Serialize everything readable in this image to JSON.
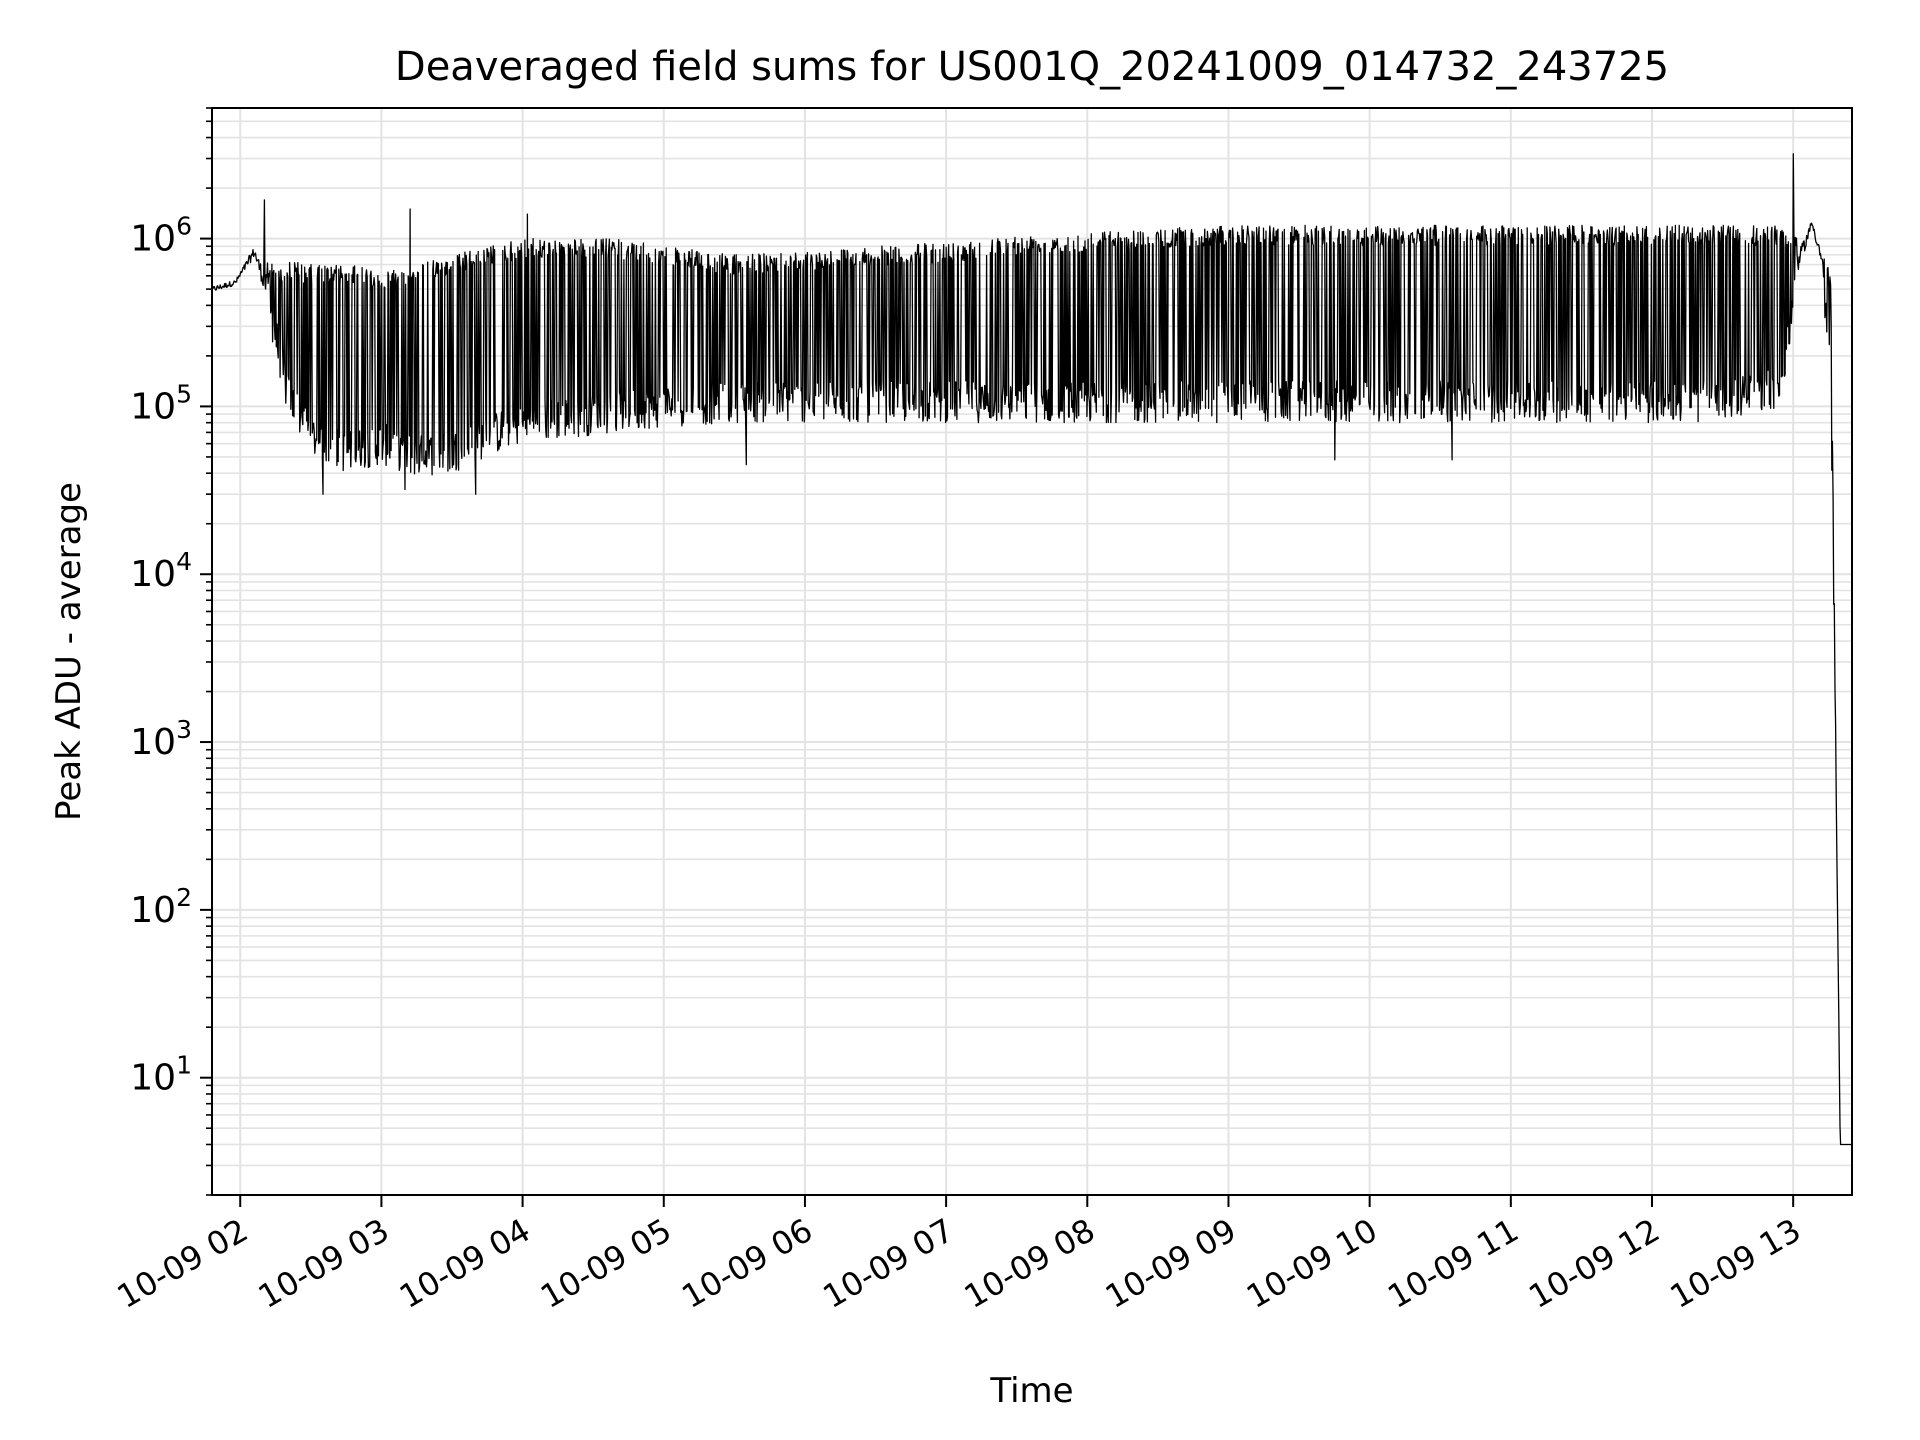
{
  "chart_data": {
    "type": "line",
    "title": "Deaveraged field sums for US001Q_20241009_014732_243725",
    "xlabel": "Time",
    "ylabel": "Peak ADU - average",
    "yscale": "log",
    "ylim": [
      2,
      6000000
    ],
    "xlim": [
      "10-09 01:48",
      "10-09 13:25"
    ],
    "grid": true,
    "line_color": "#000000",
    "x_ticks": [
      "10-09 02",
      "10-09 03",
      "10-09 04",
      "10-09 05",
      "10-09 06",
      "10-09 07",
      "10-09 08",
      "10-09 09",
      "10-09 10",
      "10-09 11",
      "10-09 12",
      "10-09 13"
    ],
    "y_ticks": [
      {
        "value": 10,
        "base": "10",
        "exp": "1"
      },
      {
        "value": 100,
        "base": "10",
        "exp": "2"
      },
      {
        "value": 1000,
        "base": "10",
        "exp": "3"
      },
      {
        "value": 10000,
        "base": "10",
        "exp": "4"
      },
      {
        "value": 100000,
        "base": "10",
        "exp": "5"
      },
      {
        "value": 1000000,
        "base": "10",
        "exp": "6"
      }
    ],
    "series": [
      {
        "envelope": {
          "x": [
            "10-09 01:48",
            "10-09 01:58",
            "10-09 02:06",
            "10-09 02:10",
            "10-09 02:15",
            "10-09 02:20",
            "10-09 02:30",
            "10-09 02:45",
            "10-09 03:00",
            "10-09 03:15",
            "10-09 03:30",
            "10-09 03:45",
            "10-09 04:00",
            "10-09 04:20",
            "10-09 04:40",
            "10-09 05:00",
            "10-09 05:30",
            "10-09 06:00",
            "10-09 06:30",
            "10-09 07:00",
            "10-09 07:30",
            "10-09 08:00",
            "10-09 08:30",
            "10-09 09:00",
            "10-09 09:30",
            "10-09 10:00",
            "10-09 10:30",
            "10-09 11:00",
            "10-09 11:30",
            "10-09 12:00",
            "10-09 12:30",
            "10-09 12:55",
            "10-09 13:02",
            "10-09 13:08",
            "10-09 13:12",
            "10-09 13:16",
            "10-09 13:20",
            "10-09 13:25"
          ],
          "upper": [
            550000,
            600000,
            1000000,
            800000,
            700000,
            750000,
            700000,
            700000,
            650000,
            700000,
            800000,
            900000,
            1000000,
            1000000,
            1000000,
            900000,
            800000,
            850000,
            900000,
            950000,
            1050000,
            1100000,
            1150000,
            1200000,
            1200000,
            1200000,
            1200000,
            1200000,
            1200000,
            1200000,
            1200000,
            1200000,
            1000000,
            1400000,
            1000000,
            600000,
            4,
            4
          ],
          "lower": [
            450000,
            500000,
            700000,
            400000,
            200000,
            90000,
            50000,
            40000,
            45000,
            38000,
            40000,
            50000,
            60000,
            65000,
            70000,
            75000,
            80000,
            80000,
            80000,
            80000,
            80000,
            80000,
            80000,
            80000,
            80000,
            80000,
            80000,
            80000,
            80000,
            80000,
            80000,
            100000,
            500000,
            1100000,
            600000,
            100000,
            4,
            4
          ]
        },
        "spikes": [
          {
            "x": "10-09 02:10",
            "value": 1700000
          },
          {
            "x": "10-09 03:12",
            "value": 1500000
          },
          {
            "x": "10-09 04:02",
            "value": 1400000
          },
          {
            "x": "10-09 13:00",
            "value": 3200000
          }
        ],
        "dips": [
          {
            "x": "10-09 02:35",
            "value": 30000
          },
          {
            "x": "10-09 03:10",
            "value": 32000
          },
          {
            "x": "10-09 03:40",
            "value": 30000
          },
          {
            "x": "10-09 05:35",
            "value": 45000
          },
          {
            "x": "10-09 09:45",
            "value": 48000
          },
          {
            "x": "10-09 10:35",
            "value": 48000
          }
        ]
      }
    ]
  }
}
